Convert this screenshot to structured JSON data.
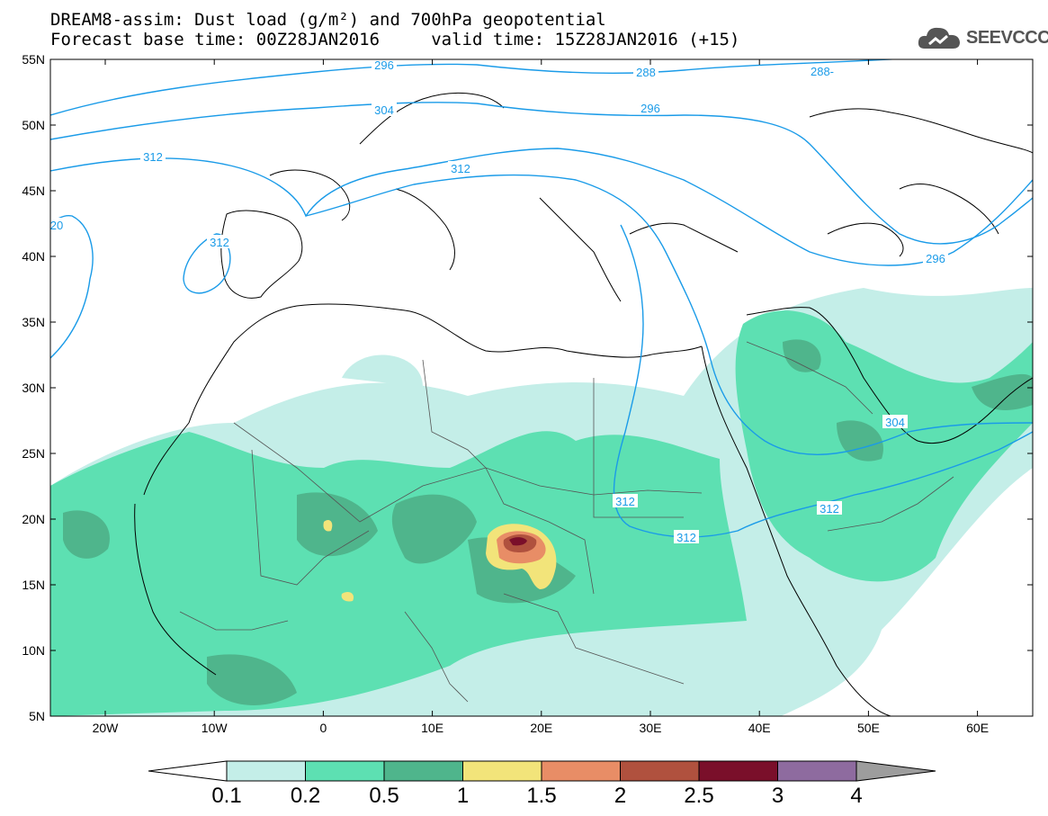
{
  "header": {
    "line1": "DREAM8-assim: Dust load (g/m²) and 700hPa geopotential",
    "line2": "Forecast base time: 00Z28JAN2016     valid time: 15Z28JAN2016 (+15)"
  },
  "logo": {
    "text": "SEEVCCC",
    "icon": "cloud-logo-icon"
  },
  "map": {
    "lat_labels": [
      "55N",
      "50N",
      "45N",
      "40N",
      "35N",
      "30N",
      "25N",
      "20N",
      "15N",
      "10N",
      "5N"
    ],
    "lon_labels": [
      "20W",
      "10W",
      "0",
      "10E",
      "20E",
      "30E",
      "40E",
      "50E",
      "60E"
    ],
    "contour_labels": [
      "296",
      "288",
      "288-",
      "296",
      "304",
      "312",
      "312",
      "312",
      "296",
      "304",
      "312",
      "312",
      "312",
      "20"
    ],
    "colors": {
      "contour": "#1a9be8",
      "coast": "#000000"
    }
  },
  "colorbar": {
    "labels": [
      "0.1",
      "0.2",
      "0.5",
      "1",
      "1.5",
      "2",
      "2.5",
      "3",
      "4"
    ],
    "colors": [
      "#ffffff",
      "#c4eee8",
      "#5de0b2",
      "#4fb58c",
      "#f2e47a",
      "#e88d66",
      "#b0513e",
      "#7a0f2a",
      "#8e6b9f",
      "#9d9d9d"
    ]
  }
}
